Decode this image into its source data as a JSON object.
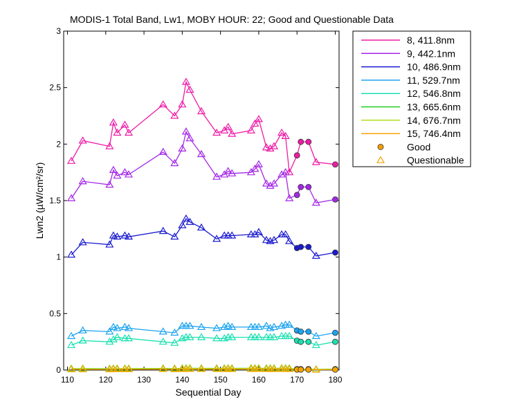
{
  "chart_data": {
    "type": "line",
    "title": "MODIS-1 Total Band, Lw1, MOBY HOUR: 22;  Good and Questionable Data",
    "xlabel": "Sequential Day",
    "ylabel": "Lwn2 (µW/cm²/sr)",
    "xlim": [
      109,
      181
    ],
    "ylim": [
      0,
      3
    ],
    "xticks": [
      "110",
      "120",
      "130",
      "140",
      "150",
      "160",
      "170",
      "180"
    ],
    "yticks": [
      "0",
      "0.5",
      "1",
      "1.5",
      "2",
      "2.5",
      "3"
    ],
    "grid": false,
    "legend_position": "outside-right",
    "legend_markers": [
      {
        "name": "Good",
        "marker": "circle",
        "color": "#f59d00"
      },
      {
        "name": "Questionable",
        "marker": "triangle",
        "color": "#f5a300"
      }
    ],
    "series": [
      {
        "name": "8, 411.8nm",
        "color": "#ee1aa6",
        "x": [
          111,
          114,
          121,
          122,
          123,
          125,
          126,
          135,
          138,
          140,
          141,
          142,
          145,
          149,
          151,
          152,
          153,
          158,
          159,
          160,
          162,
          163,
          164,
          166,
          167,
          168,
          170,
          171,
          173,
          175,
          180
        ],
        "y": [
          1.85,
          2.03,
          1.98,
          2.19,
          2.1,
          2.17,
          2.1,
          2.35,
          2.25,
          2.35,
          2.55,
          2.48,
          2.29,
          2.1,
          2.12,
          2.15,
          2.09,
          2.12,
          2.18,
          2.22,
          1.97,
          1.96,
          1.98,
          2.1,
          2.07,
          1.75,
          1.9,
          2.02,
          2.02,
          1.84,
          1.82
        ],
        "quality": [
          "q",
          "q",
          "q",
          "q",
          "q",
          "q",
          "q",
          "q",
          "q",
          "q",
          "q",
          "q",
          "q",
          "q",
          "q",
          "q",
          "q",
          "q",
          "q",
          "q",
          "q",
          "q",
          "q",
          "q",
          "q",
          "q",
          "g",
          "g",
          "g",
          "q",
          "g"
        ]
      },
      {
        "name": "9, 442.1nm",
        "color": "#a326e8",
        "x": [
          111,
          114,
          121,
          122,
          123,
          125,
          126,
          135,
          138,
          140,
          141,
          142,
          145,
          149,
          151,
          152,
          153,
          158,
          159,
          160,
          162,
          163,
          164,
          166,
          167,
          168,
          170,
          171,
          173,
          175,
          180
        ],
        "y": [
          1.52,
          1.67,
          1.64,
          1.77,
          1.72,
          1.75,
          1.73,
          1.93,
          1.83,
          1.96,
          2.11,
          2.05,
          1.91,
          1.71,
          1.73,
          1.76,
          1.74,
          1.75,
          1.78,
          1.82,
          1.65,
          1.63,
          1.65,
          1.73,
          1.75,
          1.52,
          1.55,
          1.62,
          1.62,
          1.48,
          1.51
        ],
        "quality": [
          "q",
          "q",
          "q",
          "q",
          "q",
          "q",
          "q",
          "q",
          "q",
          "q",
          "q",
          "q",
          "q",
          "q",
          "q",
          "q",
          "q",
          "q",
          "q",
          "q",
          "q",
          "q",
          "q",
          "q",
          "q",
          "q",
          "g",
          "g",
          "g",
          "q",
          "g"
        ]
      },
      {
        "name": "10, 486.9nm",
        "color": "#1a1ad0",
        "x": [
          111,
          114,
          121,
          122,
          123,
          125,
          126,
          135,
          138,
          140,
          141,
          142,
          145,
          149,
          151,
          152,
          153,
          158,
          159,
          160,
          162,
          163,
          164,
          166,
          167,
          168,
          170,
          171,
          173,
          175,
          180
        ],
        "y": [
          1.02,
          1.13,
          1.11,
          1.19,
          1.18,
          1.19,
          1.18,
          1.23,
          1.18,
          1.28,
          1.34,
          1.31,
          1.26,
          1.16,
          1.19,
          1.19,
          1.19,
          1.2,
          1.2,
          1.22,
          1.15,
          1.14,
          1.15,
          1.2,
          1.2,
          1.14,
          1.08,
          1.09,
          1.09,
          1.01,
          1.04
        ],
        "quality": [
          "q",
          "q",
          "q",
          "q",
          "q",
          "q",
          "q",
          "q",
          "q",
          "q",
          "q",
          "q",
          "q",
          "q",
          "q",
          "q",
          "q",
          "q",
          "q",
          "q",
          "q",
          "q",
          "q",
          "q",
          "q",
          "q",
          "g",
          "g",
          "g",
          "q",
          "g"
        ]
      },
      {
        "name": "11, 529.7nm",
        "color": "#1aa3f0",
        "x": [
          111,
          114,
          121,
          122,
          123,
          125,
          126,
          135,
          138,
          140,
          141,
          142,
          145,
          149,
          151,
          152,
          153,
          158,
          159,
          160,
          162,
          163,
          164,
          166,
          167,
          168,
          170,
          171,
          173,
          175,
          180
        ],
        "y": [
          0.3,
          0.35,
          0.34,
          0.38,
          0.37,
          0.38,
          0.37,
          0.34,
          0.33,
          0.39,
          0.39,
          0.39,
          0.38,
          0.37,
          0.38,
          0.39,
          0.38,
          0.38,
          0.38,
          0.38,
          0.39,
          0.37,
          0.38,
          0.39,
          0.4,
          0.4,
          0.35,
          0.34,
          0.34,
          0.3,
          0.33
        ],
        "quality": [
          "q",
          "q",
          "q",
          "q",
          "q",
          "q",
          "q",
          "q",
          "q",
          "q",
          "q",
          "q",
          "q",
          "q",
          "q",
          "q",
          "q",
          "q",
          "q",
          "q",
          "q",
          "q",
          "q",
          "q",
          "q",
          "q",
          "g",
          "g",
          "g",
          "q",
          "g"
        ]
      },
      {
        "name": "12, 546.8nm",
        "color": "#1ae0b0",
        "x": [
          111,
          114,
          121,
          122,
          123,
          125,
          126,
          135,
          138,
          140,
          141,
          142,
          145,
          149,
          151,
          152,
          153,
          158,
          159,
          160,
          162,
          163,
          164,
          166,
          167,
          168,
          170,
          171,
          173,
          175,
          180
        ],
        "y": [
          0.22,
          0.26,
          0.25,
          0.27,
          0.29,
          0.28,
          0.28,
          0.25,
          0.24,
          0.28,
          0.29,
          0.29,
          0.29,
          0.28,
          0.28,
          0.29,
          0.29,
          0.29,
          0.29,
          0.29,
          0.29,
          0.29,
          0.29,
          0.3,
          0.3,
          0.3,
          0.26,
          0.25,
          0.25,
          0.22,
          0.25
        ],
        "quality": [
          "q",
          "q",
          "q",
          "q",
          "q",
          "q",
          "q",
          "q",
          "q",
          "q",
          "q",
          "q",
          "q",
          "q",
          "q",
          "q",
          "q",
          "q",
          "q",
          "q",
          "q",
          "q",
          "q",
          "q",
          "q",
          "q",
          "g",
          "g",
          "g",
          "q",
          "g"
        ]
      },
      {
        "name": "13, 665.6nm",
        "color": "#1ad01a",
        "x": [
          111,
          114,
          121,
          122,
          123,
          125,
          126,
          135,
          138,
          140,
          141,
          142,
          145,
          149,
          151,
          152,
          153,
          158,
          159,
          160,
          162,
          163,
          164,
          166,
          167,
          168,
          170,
          171,
          173,
          175,
          180
        ],
        "y": [
          0.012,
          0.013,
          0.012,
          0.013,
          0.013,
          0.013,
          0.013,
          0.014,
          0.013,
          0.015,
          0.016,
          0.016,
          0.015,
          0.015,
          0.015,
          0.016,
          0.015,
          0.016,
          0.016,
          0.016,
          0.015,
          0.015,
          0.015,
          0.016,
          0.016,
          0.015,
          0.008,
          0.008,
          0.008,
          0.006,
          0.008
        ],
        "quality": [
          "q",
          "q",
          "q",
          "q",
          "q",
          "q",
          "q",
          "q",
          "q",
          "q",
          "q",
          "q",
          "q",
          "q",
          "q",
          "q",
          "q",
          "q",
          "q",
          "q",
          "q",
          "q",
          "q",
          "q",
          "q",
          "q",
          "g",
          "g",
          "g",
          "q",
          "g"
        ]
      },
      {
        "name": "14, 676.7nm",
        "color": "#b0e01a",
        "x": [
          111,
          114,
          121,
          122,
          123,
          125,
          126,
          135,
          138,
          140,
          141,
          142,
          145,
          149,
          151,
          152,
          153,
          158,
          159,
          160,
          162,
          163,
          164,
          166,
          167,
          168,
          170,
          171,
          173,
          175,
          180
        ],
        "y": [
          0.01,
          0.011,
          0.01,
          0.011,
          0.011,
          0.011,
          0.011,
          0.012,
          0.011,
          0.013,
          0.014,
          0.014,
          0.013,
          0.013,
          0.013,
          0.014,
          0.013,
          0.014,
          0.014,
          0.014,
          0.013,
          0.013,
          0.013,
          0.014,
          0.014,
          0.013,
          0.007,
          0.007,
          0.007,
          0.005,
          0.007
        ],
        "quality": [
          "q",
          "q",
          "q",
          "q",
          "q",
          "q",
          "q",
          "q",
          "q",
          "q",
          "q",
          "q",
          "q",
          "q",
          "q",
          "q",
          "q",
          "q",
          "q",
          "q",
          "q",
          "q",
          "q",
          "q",
          "q",
          "q",
          "g",
          "g",
          "g",
          "q",
          "g"
        ]
      },
      {
        "name": "15, 746.4nm",
        "color": "#f5a300",
        "x": [
          111,
          114,
          121,
          122,
          123,
          125,
          126,
          135,
          138,
          140,
          141,
          142,
          145,
          149,
          151,
          152,
          153,
          158,
          159,
          160,
          162,
          163,
          164,
          166,
          167,
          168,
          170,
          171,
          173,
          175,
          180
        ],
        "y": [
          0.006,
          0.006,
          0.006,
          0.007,
          0.007,
          0.007,
          0.007,
          0.008,
          0.007,
          0.008,
          0.009,
          0.009,
          0.008,
          0.008,
          0.008,
          0.009,
          0.008,
          0.009,
          0.009,
          0.009,
          0.008,
          0.008,
          0.008,
          0.009,
          0.009,
          0.008,
          0.004,
          0.004,
          0.004,
          0.003,
          0.004
        ],
        "quality": [
          "q",
          "q",
          "q",
          "q",
          "q",
          "q",
          "q",
          "q",
          "q",
          "q",
          "q",
          "q",
          "q",
          "q",
          "q",
          "q",
          "q",
          "q",
          "q",
          "q",
          "q",
          "q",
          "q",
          "q",
          "q",
          "q",
          "g",
          "g",
          "g",
          "q",
          "g"
        ]
      }
    ]
  }
}
